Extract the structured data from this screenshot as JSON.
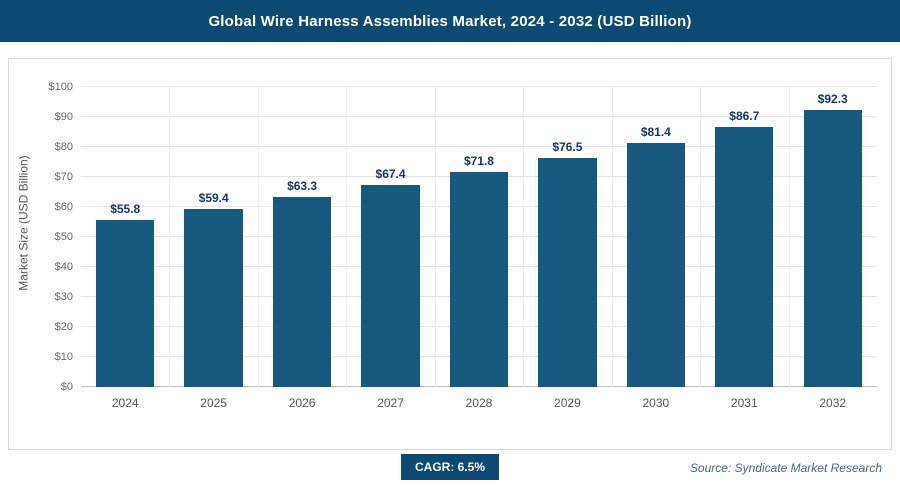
{
  "header": {
    "title": "Global Wire Harness Assemblies Market, 2024 - 2032 (USD Billion)"
  },
  "chart_data": {
    "type": "bar",
    "title": "Global Wire Harness Assemblies Market, 2024 - 2032 (USD Billion)",
    "categories": [
      "2024",
      "2025",
      "2026",
      "2027",
      "2028",
      "2029",
      "2030",
      "2031",
      "2032"
    ],
    "values": [
      55.8,
      59.4,
      63.3,
      67.4,
      71.8,
      76.5,
      81.4,
      86.7,
      92.3
    ],
    "xlabel": "",
    "ylabel": "Market Size (USD Billion)",
    "ylim": [
      0,
      100
    ],
    "ytick_step": 10,
    "ytick_prefix": "$",
    "label_prefix": "$",
    "grid": true,
    "legend": false,
    "bar_color": "#16587e"
  },
  "footer": {
    "cagr_label": "CAGR: 6.5%",
    "source": "Source: Syndicate Market Research"
  },
  "colors": {
    "header_bg": "#0c4a74",
    "bar": "#16587e",
    "badge_bg": "#0c4a74",
    "value_label": "#17365d",
    "axis_text": "#666666",
    "source_text": "#44688a"
  }
}
